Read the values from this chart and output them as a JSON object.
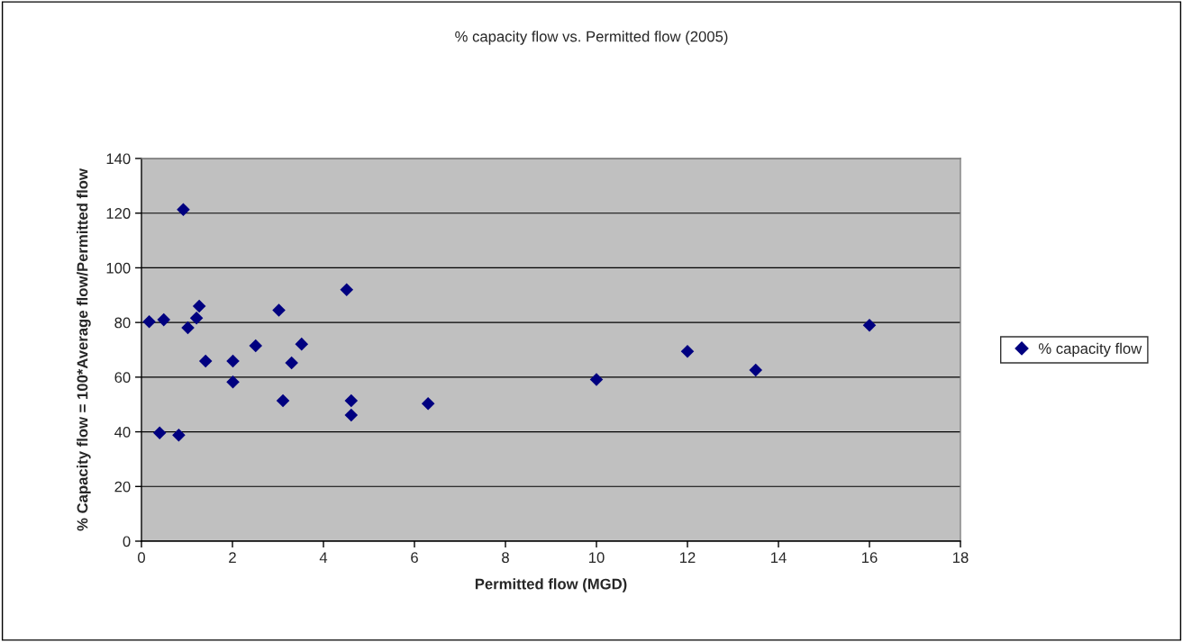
{
  "chart_data": {
    "type": "scatter",
    "title": "% capacity flow vs. Permitted flow (2005)",
    "xlabel": "Permitted flow (MGD)",
    "ylabel": "% Capacity flow = 100*Average flow/Permitted flow",
    "x": [
      0.17,
      0.4,
      0.49,
      0.82,
      0.92,
      1.02,
      1.21,
      1.27,
      1.41,
      2.01,
      2.01,
      2.51,
      3.02,
      3.11,
      3.3,
      3.52,
      4.51,
      4.61,
      4.61,
      6.3,
      10.0,
      12.0,
      13.5,
      16.0
    ],
    "series": [
      {
        "name": "% capacity flow",
        "color": "#000080",
        "values": [
          80.3,
          39.6,
          81.0,
          38.8,
          121.3,
          78.1,
          81.6,
          86.0,
          65.9,
          65.9,
          58.2,
          71.5,
          84.5,
          51.4,
          65.2,
          72.1,
          92.0,
          51.4,
          46.1,
          50.3,
          59.1,
          69.4,
          62.6,
          79.0
        ]
      }
    ],
    "xlim": [
      0,
      18
    ],
    "xticks": [
      0,
      2,
      4,
      6,
      8,
      10,
      12,
      14,
      16,
      18
    ],
    "ylim": [
      0,
      140
    ],
    "yticks": [
      0,
      20,
      40,
      60,
      80,
      100,
      120,
      140
    ],
    "grid": "y",
    "legend": "right",
    "marker": "diamond"
  }
}
